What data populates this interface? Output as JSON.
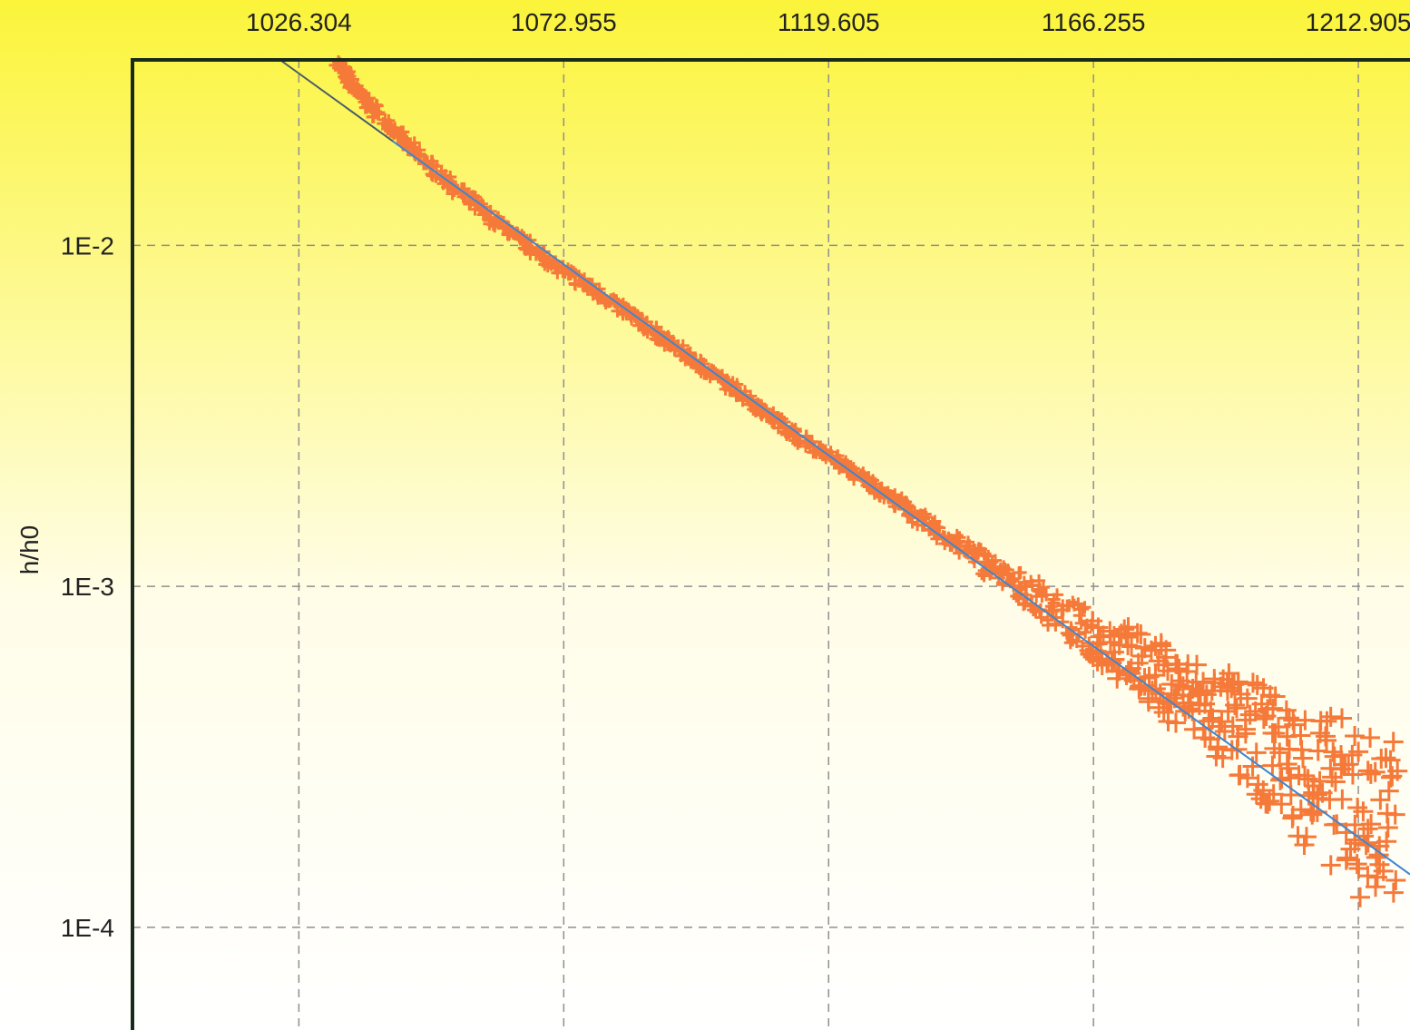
{
  "chart_data": {
    "type": "scatter",
    "title": "",
    "xlabel": "",
    "ylabel": "h/h0",
    "x_axis_position": "top",
    "y_scale": "log",
    "xlim": [
      997.0,
      1222.0
    ],
    "ylim": [
      5e-05,
      0.035
    ],
    "x_ticks": [
      1026.304,
      1072.955,
      1119.605,
      1166.255,
      1212.905
    ],
    "x_tick_labels": [
      "1026.304",
      "1072.955",
      "1119.605",
      "1166.255",
      "1212.905"
    ],
    "y_ticks": [
      0.01,
      0.001,
      0.0001
    ],
    "y_tick_labels": [
      "1E-2",
      "1E-3",
      "1E-4"
    ],
    "grid": true,
    "legend": "none",
    "colors": {
      "markers": "#f57a3a",
      "fit_line": "#3f86cf",
      "fit_line_start": "#4a5a6a",
      "frame": "#1a2a1a",
      "grid": "#8f8f8f"
    },
    "series": [
      {
        "marker": "plus",
        "points": [
          [
            1033.0,
            0.0345
          ],
          [
            1036.0,
            0.029
          ],
          [
            1040.0,
            0.0245
          ],
          [
            1045.0,
            0.02
          ],
          [
            1050.0,
            0.0168
          ],
          [
            1055.0,
            0.0142
          ],
          [
            1060.0,
            0.0121
          ],
          [
            1065.0,
            0.0105
          ],
          [
            1070.0,
            0.0091
          ],
          [
            1075.0,
            0.008
          ],
          [
            1080.0,
            0.0071
          ],
          [
            1085.0,
            0.0062
          ],
          [
            1090.0,
            0.0054
          ],
          [
            1095.0,
            0.0047
          ],
          [
            1100.0,
            0.0041
          ],
          [
            1105.0,
            0.0036
          ],
          [
            1110.0,
            0.0031
          ],
          [
            1115.0,
            0.0027
          ],
          [
            1120.0,
            0.0024
          ],
          [
            1125.0,
            0.0021
          ],
          [
            1130.0,
            0.00185
          ],
          [
            1135.0,
            0.0016
          ],
          [
            1140.0,
            0.0014
          ],
          [
            1145.0,
            0.00125
          ],
          [
            1150.0,
            0.00108
          ],
          [
            1155.0,
            0.00095
          ],
          [
            1160.0,
            0.00084
          ],
          [
            1165.0,
            0.00073
          ],
          [
            1170.0,
            0.00066
          ],
          [
            1175.0,
            0.00058
          ],
          [
            1180.0,
            0.00051
          ],
          [
            1185.0,
            0.00045
          ],
          [
            1190.0,
            0.0004
          ],
          [
            1195.0,
            0.00035
          ],
          [
            1200.0,
            0.00031
          ],
          [
            1205.0,
            0.00027
          ],
          [
            1210.0,
            0.00024
          ],
          [
            1215.0,
            0.00021
          ],
          [
            1220.0,
            0.00018
          ]
        ]
      },
      {
        "marker": "line",
        "points": [
          [
            1023.0,
            0.035
          ],
          [
            1222.0,
            0.000143
          ]
        ]
      }
    ]
  }
}
